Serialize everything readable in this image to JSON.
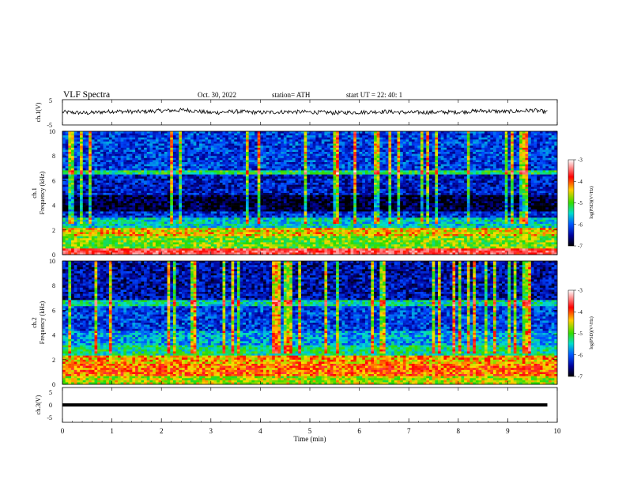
{
  "header": {
    "title": "VLF  Spectra",
    "date": "Oct. 30, 2022",
    "station": "station= ATH",
    "start": "start  UT  =    22: 40: 1"
  },
  "chart_data": [
    {
      "type": "line",
      "name": "ch1-waveform",
      "ylabel": "ch.1(V)",
      "ylim": [
        -5,
        5
      ],
      "xlim": [
        0,
        10
      ],
      "y_ticks": [
        "5",
        "-5"
      ],
      "x": [
        0,
        0.5,
        1,
        1.5,
        2,
        2.5,
        3,
        3.5,
        4,
        4.5,
        5,
        5.5,
        6,
        6.5,
        7,
        7.5,
        8,
        8.5,
        9,
        9.5,
        9.8
      ],
      "y": [
        0.1,
        -0.3,
        0.4,
        0.2,
        0.6,
        0.9,
        -0.2,
        0.3,
        -0.1,
        0.2,
        0.1,
        -0.2,
        0.0,
        0.3,
        -0.1,
        0.0,
        0.1,
        0.6,
        0.2,
        0.8,
        0.1
      ]
    },
    {
      "type": "heatmap",
      "name": "ch1-spectrogram",
      "ylabel_top": "ch.1",
      "ylabel": "Frequency  (kHz)",
      "ylim": [
        0,
        10
      ],
      "xlim": [
        0,
        10
      ],
      "y_ticks": [
        "0",
        "2",
        "4",
        "6",
        "8",
        "10"
      ],
      "colorbar": {
        "label": "log(PSD)(V²/Hz)",
        "ticks": [
          "-3",
          "-4",
          "-5",
          "-6",
          "-7"
        ],
        "range": [
          -7,
          -3
        ]
      },
      "band_levels_kHz": [
        {
          "f": [
            0.0,
            0.5
          ],
          "level": -3.8
        },
        {
          "f": [
            0.5,
            1.5
          ],
          "level": -5.0
        },
        {
          "f": [
            1.5,
            2.2
          ],
          "level": -4.6
        },
        {
          "f": [
            2.2,
            3.0
          ],
          "level": -5.6
        },
        {
          "f": [
            3.0,
            3.5
          ],
          "level": -6.3
        },
        {
          "f": [
            3.5,
            4.8
          ],
          "level": -6.9
        },
        {
          "f": [
            4.8,
            6.5
          ],
          "level": -6.4
        },
        {
          "f": [
            6.5,
            6.9
          ],
          "level": -5.3
        },
        {
          "f": [
            6.9,
            10.0
          ],
          "level": -6.2
        }
      ]
    },
    {
      "type": "heatmap",
      "name": "ch2-spectrogram",
      "ylabel_top": "ch.2",
      "ylabel": "Frequency  (kHz)",
      "ylim": [
        0,
        10
      ],
      "xlim": [
        0,
        10
      ],
      "y_ticks": [
        "0",
        "2",
        "4",
        "6",
        "8",
        "10"
      ],
      "colorbar": {
        "label": "log(PSD)(V²/Hz)",
        "ticks": [
          "-3",
          "-4",
          "-5",
          "-6",
          "-7"
        ],
        "range": [
          -7,
          -3
        ]
      },
      "band_levels_kHz": [
        {
          "f": [
            0.0,
            0.6
          ],
          "level": -4.8
        },
        {
          "f": [
            0.6,
            1.6
          ],
          "level": -4.3
        },
        {
          "f": [
            1.6,
            2.3
          ],
          "level": -4.5
        },
        {
          "f": [
            2.3,
            3.2
          ],
          "level": -5.4
        },
        {
          "f": [
            3.2,
            4.4
          ],
          "level": -5.8
        },
        {
          "f": [
            4.4,
            6.3
          ],
          "level": -6.2
        },
        {
          "f": [
            6.3,
            6.8
          ],
          "level": -5.5
        },
        {
          "f": [
            6.8,
            10.0
          ],
          "level": -6.5
        }
      ]
    },
    {
      "type": "line",
      "name": "ch3-waveform",
      "ylabel": "ch.3(V)",
      "xlabel": "Time  (min)",
      "ylim": [
        -5,
        5
      ],
      "xlim": [
        0,
        10
      ],
      "y_ticks": [
        "5",
        "0",
        "-5"
      ],
      "x_ticks": [
        "0",
        "1",
        "2",
        "3",
        "4",
        "5",
        "6",
        "7",
        "8",
        "9",
        "10"
      ],
      "x": [
        0,
        9.8
      ],
      "y": [
        0,
        0
      ]
    }
  ]
}
